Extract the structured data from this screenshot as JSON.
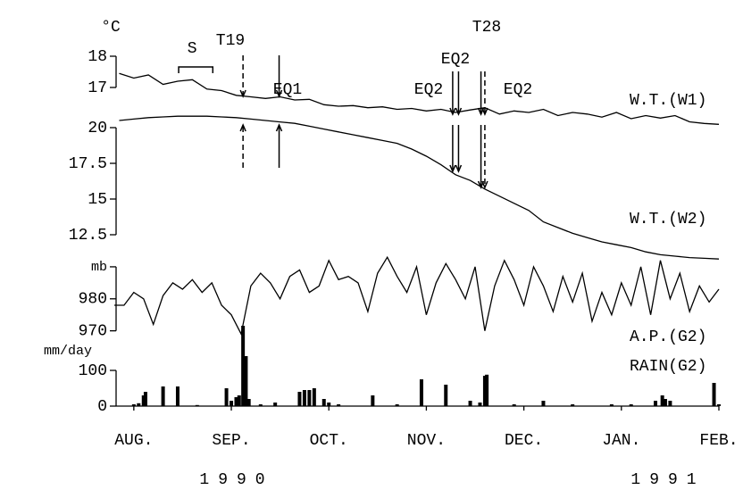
{
  "chart_data": [
    {
      "type": "line",
      "label": "W.T.(W1)",
      "unit": "°C",
      "color": "#000000",
      "xlim": [
        -0.2,
        6.0
      ],
      "ylim": [
        15.6,
        18.3
      ],
      "yticks": [
        17,
        18
      ],
      "x": [
        -0.15,
        0,
        0.15,
        0.3,
        0.45,
        0.6,
        0.75,
        0.9,
        1.05,
        1.2,
        1.35,
        1.5,
        1.65,
        1.8,
        1.95,
        2.1,
        2.25,
        2.4,
        2.55,
        2.7,
        2.85,
        3.0,
        3.15,
        3.3,
        3.45,
        3.6,
        3.75,
        3.9,
        4.05,
        4.2,
        4.35,
        4.5,
        4.65,
        4.8,
        4.95,
        5.1,
        5.25,
        5.4,
        5.55,
        5.7,
        5.85,
        6.0
      ],
      "values": [
        17.45,
        17.3,
        17.4,
        17.1,
        17.2,
        17.25,
        16.95,
        16.9,
        16.75,
        16.7,
        16.65,
        16.7,
        16.6,
        16.62,
        16.45,
        16.4,
        16.42,
        16.35,
        16.38,
        16.3,
        16.33,
        16.25,
        16.3,
        16.2,
        16.28,
        16.35,
        16.15,
        16.25,
        16.2,
        16.3,
        16.1,
        16.2,
        16.15,
        16.05,
        16.2,
        16.0,
        16.1,
        16.02,
        16.1,
        15.9,
        15.85,
        15.82
      ],
      "season": {
        "label": "S",
        "x": [
          0.46,
          0.81
        ]
      },
      "events": [
        {
          "label": "T19",
          "x": 1.12,
          "style": "dashed"
        },
        {
          "label": "EQ1",
          "x": 1.49,
          "style": "solid"
        },
        {
          "label": "EQ2",
          "x": 3.27,
          "style": "solid"
        },
        {
          "label": "EQ2",
          "x": 3.33,
          "style": "solid"
        },
        {
          "label": "EQ2",
          "x": 3.56,
          "style": "solid"
        },
        {
          "label": "T28",
          "x": 3.6,
          "style": "dashed"
        }
      ]
    },
    {
      "type": "line",
      "label": "W.T.(W2)",
      "color": "#000000",
      "xlim": [
        -0.2,
        6.0
      ],
      "ylim": [
        10.5,
        21
      ],
      "yticks": [
        12.5,
        15,
        17.5,
        20
      ],
      "x": [
        -0.15,
        0,
        0.15,
        0.3,
        0.45,
        0.6,
        0.75,
        0.9,
        1.05,
        1.2,
        1.35,
        1.5,
        1.65,
        1.8,
        1.95,
        2.1,
        2.25,
        2.4,
        2.55,
        2.7,
        2.85,
        3.0,
        3.15,
        3.3,
        3.45,
        3.6,
        3.75,
        3.9,
        4.05,
        4.2,
        4.35,
        4.5,
        4.65,
        4.8,
        4.95,
        5.1,
        5.25,
        5.4,
        5.55,
        5.7,
        5.85,
        6.0
      ],
      "values": [
        20.5,
        20.6,
        20.7,
        20.75,
        20.8,
        20.8,
        20.8,
        20.75,
        20.7,
        20.6,
        20.5,
        20.4,
        20.3,
        20.1,
        19.9,
        19.7,
        19.5,
        19.3,
        19.1,
        18.9,
        18.5,
        18.0,
        17.4,
        16.7,
        16.3,
        15.7,
        15.2,
        14.7,
        14.2,
        13.4,
        13.0,
        12.6,
        12.3,
        12.0,
        11.8,
        11.6,
        11.3,
        11.1,
        11.0,
        10.9,
        10.85,
        10.8
      ]
    },
    {
      "type": "line",
      "label": "A.P.(G2)",
      "color": "#000000",
      "xlim": [
        -0.2,
        6.0
      ],
      "ylim": [
        966,
        995
      ],
      "yticks": [
        970,
        980,
        {
          "value": 990,
          "label": "mb"
        }
      ],
      "x": [
        -0.2,
        -0.1,
        0,
        0.1,
        0.2,
        0.3,
        0.4,
        0.5,
        0.6,
        0.7,
        0.8,
        0.9,
        1.0,
        1.1,
        1.2,
        1.3,
        1.4,
        1.5,
        1.6,
        1.7,
        1.8,
        1.9,
        2.0,
        2.1,
        2.2,
        2.3,
        2.4,
        2.5,
        2.6,
        2.7,
        2.8,
        2.9,
        3.0,
        3.1,
        3.2,
        3.3,
        3.4,
        3.5,
        3.6,
        3.7,
        3.8,
        3.9,
        4.0,
        4.1,
        4.2,
        4.3,
        4.4,
        4.5,
        4.6,
        4.7,
        4.8,
        4.9,
        5.0,
        5.1,
        5.2,
        5.3,
        5.4,
        5.5,
        5.6,
        5.7,
        5.8,
        5.9,
        6.0
      ],
      "values": [
        978,
        978,
        982,
        980,
        972,
        981,
        985,
        983,
        986,
        982,
        985,
        978,
        975,
        969,
        984,
        988,
        985,
        980,
        987,
        989,
        982,
        984,
        992,
        986,
        987,
        985,
        976,
        988,
        993,
        987,
        982,
        990,
        975,
        985,
        991,
        986,
        980,
        990,
        970,
        984,
        992,
        986,
        978,
        990,
        984,
        976,
        987,
        979,
        988,
        973,
        982,
        975,
        985,
        978,
        990,
        975,
        992,
        980,
        988,
        976,
        984,
        979,
        983
      ]
    },
    {
      "type": "bar",
      "label": "RAIN(G2)",
      "unit": "mm/day",
      "color": "#000000",
      "xlim": [
        -0.2,
        6.0
      ],
      "ylim": [
        0,
        230
      ],
      "yticks": [
        0,
        100
      ],
      "xticks": [
        {
          "value": 0,
          "label": "AUG."
        },
        {
          "value": 1,
          "label": "SEP."
        },
        {
          "value": 2,
          "label": "OCT."
        },
        {
          "value": 3,
          "label": "NOV."
        },
        {
          "value": 4,
          "label": "DEC."
        },
        {
          "value": 5,
          "label": "JAN."
        },
        {
          "value": 6,
          "label": "FEB."
        }
      ],
      "years": [
        "1990",
        "1991"
      ],
      "x": [
        0.0,
        0.05,
        0.1,
        0.12,
        0.3,
        0.45,
        0.65,
        0.95,
        1.0,
        1.05,
        1.08,
        1.12,
        1.15,
        1.18,
        1.3,
        1.45,
        1.7,
        1.75,
        1.8,
        1.85,
        1.95,
        2.0,
        2.1,
        2.45,
        2.7,
        2.95,
        3.2,
        3.45,
        3.55,
        3.6,
        3.62,
        3.9,
        4.2,
        4.5,
        4.9,
        5.1,
        5.35,
        5.42,
        5.45,
        5.5,
        5.95,
        6.0
      ],
      "values": [
        5,
        8,
        30,
        40,
        55,
        55,
        3,
        50,
        15,
        25,
        30,
        225,
        140,
        20,
        5,
        10,
        40,
        45,
        45,
        50,
        20,
        10,
        5,
        30,
        5,
        75,
        60,
        15,
        10,
        85,
        88,
        5,
        15,
        5,
        5,
        5,
        15,
        30,
        20,
        15,
        65,
        5
      ]
    }
  ]
}
